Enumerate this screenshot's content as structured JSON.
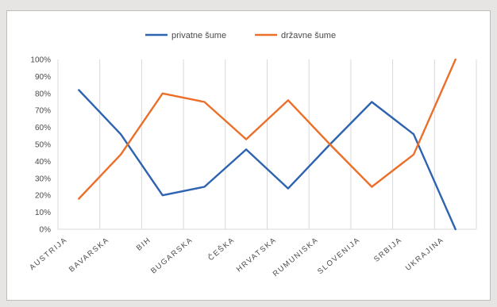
{
  "chart_data": {
    "type": "line",
    "categories": [
      "AUSTRIJA",
      "BAVARSKA",
      "BIH",
      "BUGARSKA",
      "ČEŠKA",
      "HRVATSKA",
      "RUMUNISKA",
      "SLOVENIJA",
      "SRBIJA",
      "UKRAJINA"
    ],
    "series": [
      {
        "name": "privatne šume",
        "color": "#2e63b0",
        "values": [
          82,
          56,
          20,
          25,
          47,
          24,
          50,
          75,
          56,
          0
        ]
      },
      {
        "name": "državne šume",
        "color": "#ec6f29",
        "values": [
          18,
          44,
          80,
          75,
          53,
          76,
          50,
          25,
          44,
          100
        ]
      }
    ],
    "ylim": [
      0,
      100
    ],
    "yticks": [
      "0%",
      "10%",
      "20%",
      "30%",
      "40%",
      "50%",
      "60%",
      "70%",
      "80%",
      "90%",
      "100%"
    ],
    "grid": "vertical",
    "legend_position": "top"
  }
}
